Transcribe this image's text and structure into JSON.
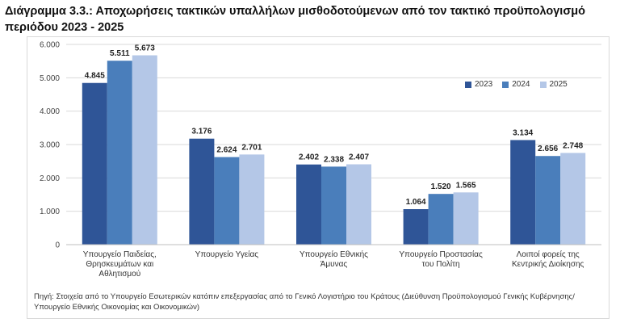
{
  "title": "Διάγραμμα 3.3.: Αποχωρήσεις τακτικών υπαλλήλων μισθοδοτούμενων από τον τακτικό προϋπολογισμό περιόδου 2023 - 2025",
  "source": "Πηγή: Στοιχεία από το Υπουργείο Εσωτερικών κατόπιν επεξεργασίας από το Γενικό Λογιστήριο του Κράτους (Διεύθυνση Προϋπολογισμού Γενικής Κυβέρνησης/Υπουργείο Εθνικής Οικονομίας και Οικονομικών)",
  "chart_data": {
    "type": "bar",
    "categories": [
      [
        "Υπουργείο Παιδείας,",
        "Θρησκευμάτων και",
        "Αθλητισμού"
      ],
      [
        "Υπουργείο Υγείας"
      ],
      [
        "Υπουργείο Εθνικής",
        "Άμυνας"
      ],
      [
        "Υπουργείο Προστασίας",
        "του Πολίτη"
      ],
      [
        "Λοιποί φορείς της",
        "Κεντρικής Διοίκησης"
      ]
    ],
    "series": [
      {
        "name": "2023",
        "color": "#2f5597",
        "values": [
          4845,
          3176,
          2402,
          1064,
          3134
        ],
        "labels": [
          "4.845",
          "3.176",
          "2.402",
          "1.064",
          "3.134"
        ]
      },
      {
        "name": "2024",
        "color": "#4a7ebb",
        "values": [
          5511,
          2624,
          2338,
          1520,
          2656
        ],
        "labels": [
          "5.511",
          "2.624",
          "2.338",
          "1.520",
          "2.656"
        ]
      },
      {
        "name": "2025",
        "color": "#b4c7e7",
        "values": [
          5673,
          2701,
          2407,
          1565,
          2748
        ],
        "labels": [
          "5.673",
          "2.701",
          "2.407",
          "1.565",
          "2.748"
        ]
      }
    ],
    "ylim": [
      0,
      6000
    ],
    "yticks": [
      0,
      1000,
      2000,
      3000,
      4000,
      5000,
      6000
    ],
    "ytick_labels": [
      "0",
      "1.000",
      "2.000",
      "3.000",
      "4.000",
      "5.000",
      "6.000"
    ],
    "grid": true,
    "legend_position": "top-right"
  }
}
